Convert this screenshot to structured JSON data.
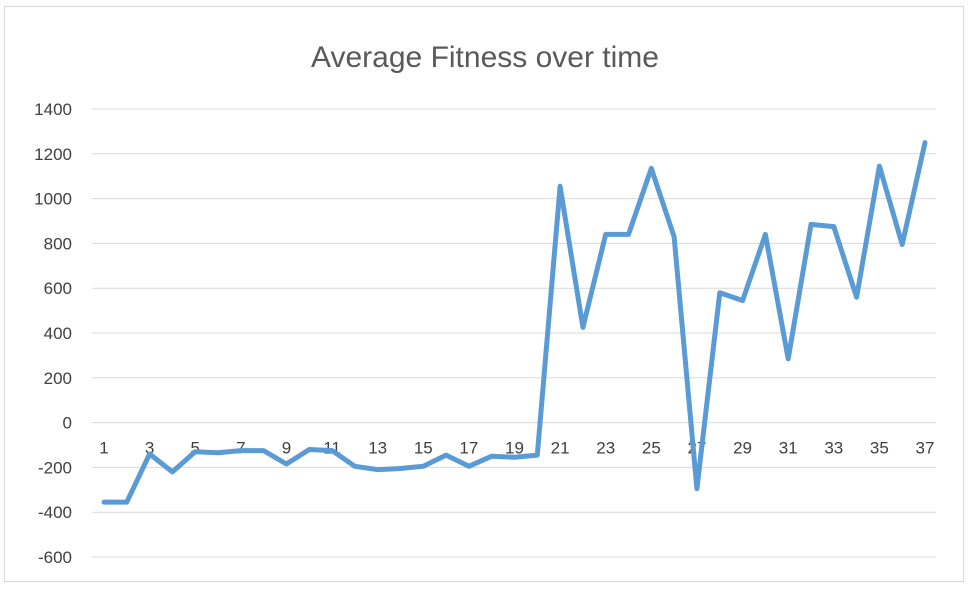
{
  "chart_data": {
    "type": "line",
    "title": "Average Fitness over time",
    "xlabel": "",
    "ylabel": "",
    "ylim": [
      -600,
      1400
    ],
    "yticks": [
      -600,
      -400,
      -200,
      0,
      200,
      400,
      600,
      800,
      1000,
      1200,
      1400
    ],
    "x": [
      1,
      2,
      3,
      4,
      5,
      6,
      7,
      8,
      9,
      10,
      11,
      12,
      13,
      14,
      15,
      16,
      17,
      18,
      19,
      20,
      21,
      22,
      23,
      24,
      25,
      26,
      27,
      28,
      29,
      30,
      31,
      32,
      33,
      34,
      35,
      36,
      37
    ],
    "xtick_labels": [
      "1",
      "3",
      "5",
      "7",
      "9",
      "11",
      "13",
      "15",
      "17",
      "19",
      "21",
      "23",
      "25",
      "27",
      "29",
      "31",
      "33",
      "35",
      "37"
    ],
    "grid": true,
    "legend": "none",
    "series": [
      {
        "name": "",
        "color": "#5b9bd5",
        "values": [
          -355,
          -355,
          -140,
          -220,
          -130,
          -135,
          -125,
          -125,
          -185,
          -120,
          -125,
          -195,
          -210,
          -205,
          -195,
          -145,
          -195,
          -150,
          -155,
          -145,
          1055,
          425,
          840,
          840,
          1135,
          830,
          -295,
          580,
          545,
          840,
          285,
          885,
          875,
          560,
          1145,
          795,
          1250
        ]
      }
    ]
  }
}
